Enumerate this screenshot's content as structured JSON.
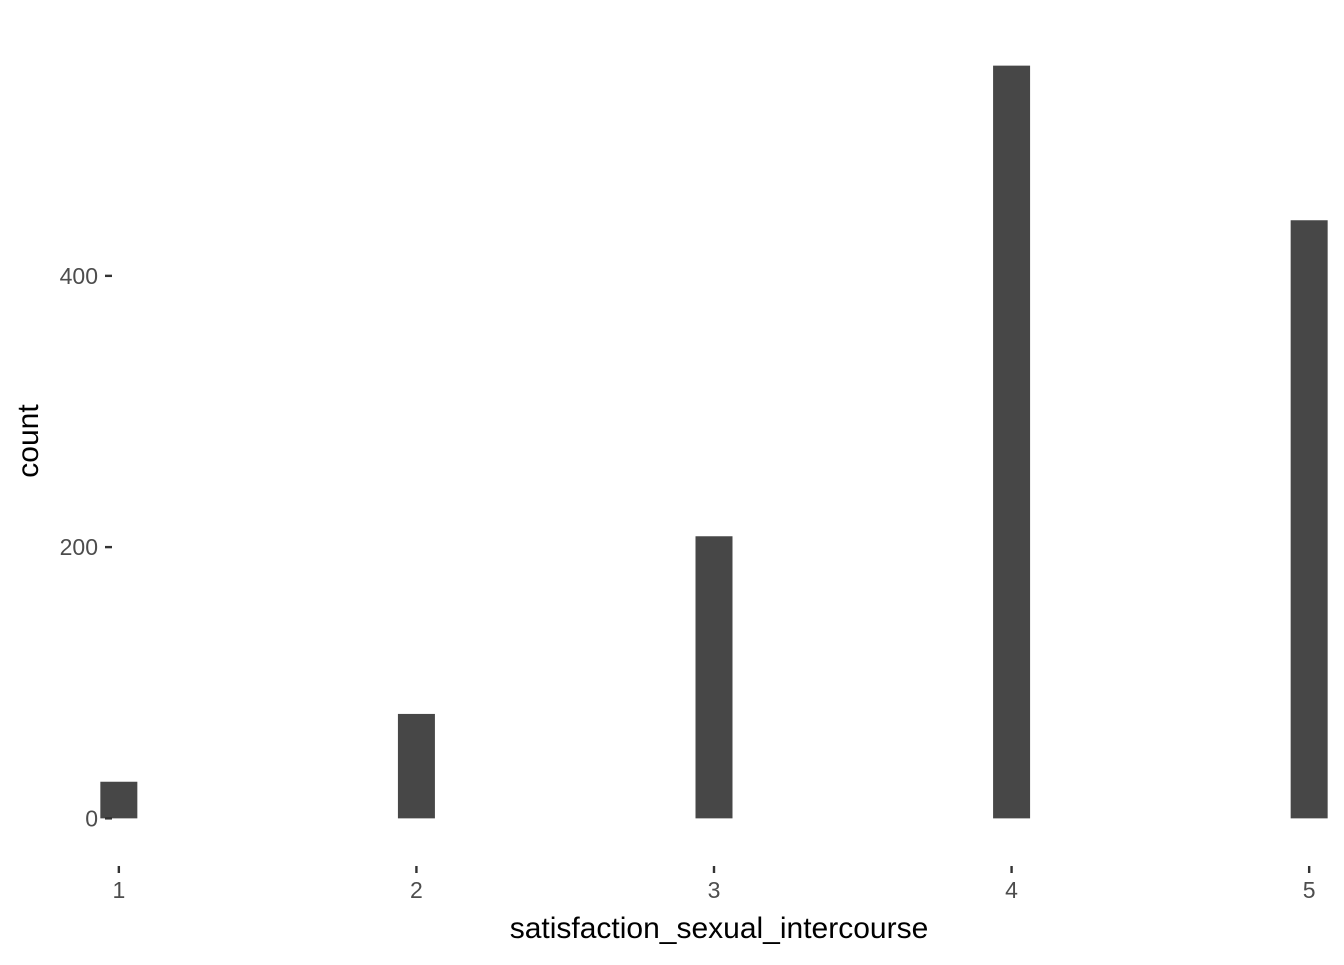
{
  "chart_data": {
    "type": "bar",
    "title": "",
    "xlabel": "satisfaction_sexual_intercourse",
    "ylabel": "count",
    "categories": [
      "1",
      "2",
      "3",
      "4",
      "5"
    ],
    "x": [
      1,
      2,
      3,
      4,
      5
    ],
    "values": [
      27,
      77,
      208,
      555,
      441
    ],
    "xlim": [
      0.977,
      5.023
    ],
    "ylim": [
      -27.75,
      582.75
    ],
    "xticks": [
      "1",
      "2",
      "3",
      "4",
      "5"
    ],
    "yticks": [
      "0",
      "200",
      "400"
    ],
    "ytick_values": [
      0,
      200,
      400
    ],
    "bar_color": "#474747",
    "background": "#ffffff",
    "grid": false,
    "legend": "none"
  }
}
